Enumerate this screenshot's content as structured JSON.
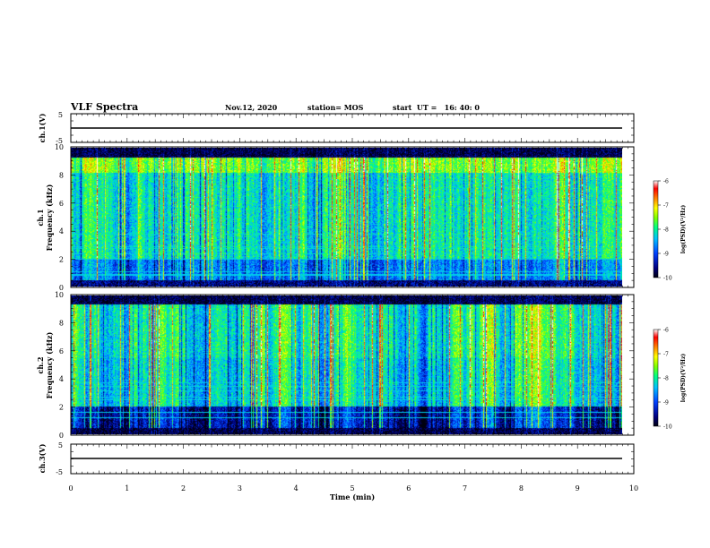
{
  "header": {
    "title": "VLF Spectra",
    "date": "Nov.12, 2020",
    "station": "station= MOS",
    "start": "start  UT =   16: 40: 0"
  },
  "colors": {
    "colormap": [
      "#000010",
      "#000080",
      "#0040ff",
      "#00c0ff",
      "#00ff80",
      "#80ff00",
      "#ffff00",
      "#ff8000",
      "#ff0000",
      "#ffffff"
    ]
  },
  "chart_data": [
    {
      "type": "line",
      "name": "ch1-voltage",
      "ylabel": "ch.1(V)",
      "ylim": [
        -5,
        5
      ],
      "yticks": [
        "5",
        "-5"
      ],
      "x": [
        0,
        9.8
      ],
      "y": [
        0,
        0
      ]
    },
    {
      "type": "heatmap",
      "name": "ch1-spectrogram",
      "ylabel": "ch.1\nFrequency (kHz)",
      "ylim": [
        0,
        10
      ],
      "yticks": [
        "0",
        "2",
        "4",
        "6",
        "8",
        "10"
      ],
      "xlim": [
        0,
        9.8
      ],
      "colorbar": {
        "label": "log(PSD)(V²/Hz)",
        "range": [
          -10,
          -6
        ],
        "ticks": [
          "-6",
          "-7",
          "-8",
          "-9",
          "-10"
        ]
      }
    },
    {
      "type": "heatmap",
      "name": "ch2-spectrogram",
      "ylabel": "ch.2\nFrequency (kHz)",
      "ylim": [
        0,
        10
      ],
      "yticks": [
        "0",
        "2",
        "4",
        "6",
        "8",
        "10"
      ],
      "xlim": [
        0,
        9.8
      ],
      "colorbar": {
        "label": "log(PSD)(V²/Hz)",
        "range": [
          -10,
          -6
        ],
        "ticks": [
          "-6",
          "-7",
          "-8",
          "-9",
          "-10"
        ]
      }
    },
    {
      "type": "line",
      "name": "ch3-voltage",
      "ylabel": "ch.3(V)",
      "ylim": [
        -5,
        5
      ],
      "yticks": [
        "5",
        "-5"
      ],
      "x": [
        0,
        9.8
      ],
      "y": [
        0,
        0
      ]
    }
  ],
  "xaxis": {
    "label": "Time (min)",
    "xlim": [
      0,
      10
    ],
    "ticks": [
      "0",
      "1",
      "2",
      "3",
      "4",
      "5",
      "6",
      "7",
      "8",
      "9",
      "10"
    ]
  }
}
